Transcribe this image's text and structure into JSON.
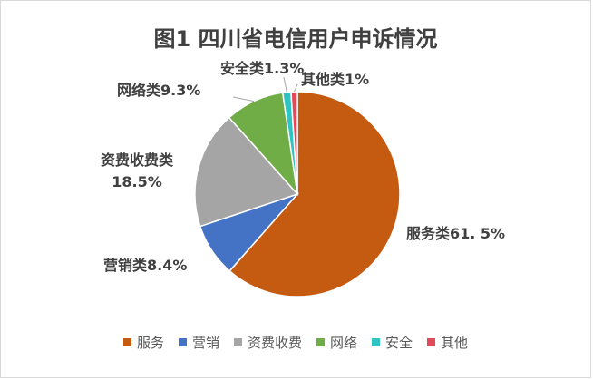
{
  "chart_data": {
    "type": "pie",
    "title": "图1  四川省电信用户申诉情况",
    "categories": [
      "服务",
      "营销",
      "资费收费",
      "网络",
      "安全",
      "其他"
    ],
    "values": [
      61.5,
      8.4,
      18.5,
      9.3,
      1.3,
      1.0
    ],
    "colors": [
      "#C55A11",
      "#4472C4",
      "#A5A5A5",
      "#70AD47",
      "#2EC4C4",
      "#E04A5A"
    ],
    "data_labels": [
      "服务类61. 5%",
      "营销类8.4%",
      "资费收费类\n18.5%",
      "网络类9.3%",
      "安全类1.3%",
      "其他类1%"
    ],
    "legend_placement": "bottom"
  }
}
